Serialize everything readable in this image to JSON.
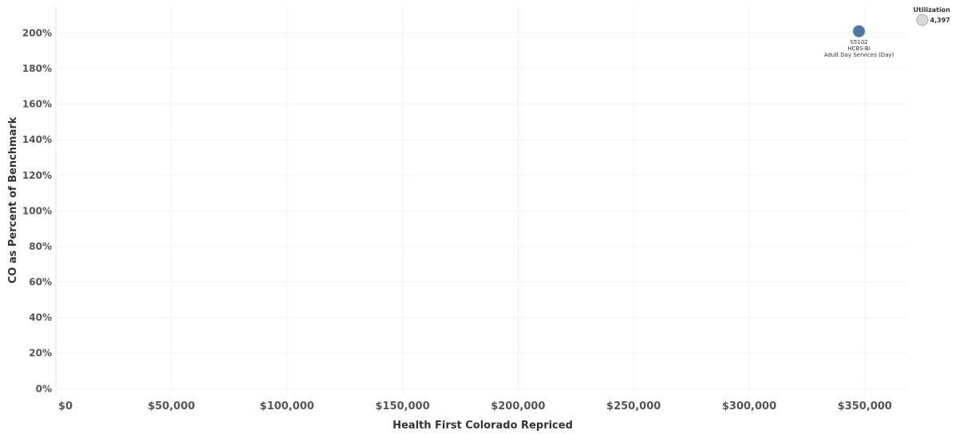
{
  "chart_data": {
    "type": "scatter",
    "xlabel": "Health First Colorado Repriced",
    "ylabel": "CO as Percent of Benchmark",
    "xlim": [
      0,
      368000
    ],
    "ylim": [
      -3,
      215
    ],
    "x_ticks": [
      0,
      50000,
      100000,
      150000,
      200000,
      250000,
      300000,
      350000
    ],
    "x_tick_labels": [
      "$0",
      "$50,000",
      "$100,000",
      "$150,000",
      "$200,000",
      "$250,000",
      "$300,000",
      "$350,000"
    ],
    "y_ticks": [
      0,
      20,
      40,
      60,
      80,
      100,
      120,
      140,
      160,
      180,
      200
    ],
    "y_tick_labels": [
      "0%",
      "20%",
      "40%",
      "60%",
      "80%",
      "100%",
      "120%",
      "140%",
      "160%",
      "180%",
      "200%"
    ],
    "grid": true,
    "points": [
      {
        "x": 347500,
        "y": 201,
        "size": 4397,
        "color": "#4e79a7",
        "label_lines": [
          "S5102",
          "HCBS-BI",
          "Adult Day Services (Day)"
        ]
      }
    ],
    "legend": {
      "title": "Utilization",
      "placement": "top-right",
      "value": "4,397"
    }
  }
}
